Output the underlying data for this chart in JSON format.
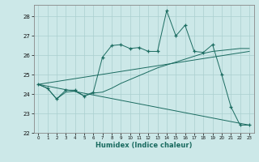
{
  "xlabel": "Humidex (Indice chaleur)",
  "xlim": [
    -0.5,
    23.5
  ],
  "ylim": [
    22,
    28.6
  ],
  "yticks": [
    22,
    23,
    24,
    25,
    26,
    27,
    28
  ],
  "xticks": [
    0,
    1,
    2,
    3,
    4,
    5,
    6,
    7,
    8,
    9,
    10,
    11,
    12,
    13,
    14,
    15,
    16,
    17,
    18,
    19,
    20,
    21,
    22,
    23
  ],
  "bg_color": "#cce8e8",
  "grid_color": "#aacfcf",
  "line_color": "#1a6b60",
  "line1_x": [
    0,
    1,
    2,
    3,
    4,
    5,
    6,
    7,
    8,
    9,
    10,
    11,
    12,
    13,
    14,
    15,
    16,
    17,
    18,
    19,
    20,
    21,
    22,
    23
  ],
  "line1_y": [
    24.5,
    24.3,
    23.75,
    24.2,
    24.2,
    23.9,
    24.1,
    25.9,
    26.5,
    26.55,
    26.35,
    26.4,
    26.2,
    26.2,
    28.3,
    27.0,
    27.55,
    26.2,
    26.15,
    26.55,
    25.0,
    23.35,
    22.4,
    22.4
  ],
  "line2_x": [
    0,
    1,
    2,
    3,
    4,
    5,
    6,
    7,
    8,
    9,
    10,
    11,
    12,
    13,
    14,
    15,
    16,
    17,
    18,
    19,
    20,
    21,
    22,
    23
  ],
  "line2_y": [
    24.5,
    24.3,
    23.75,
    24.1,
    24.15,
    23.9,
    24.05,
    24.1,
    24.3,
    24.55,
    24.75,
    24.95,
    25.15,
    25.35,
    25.5,
    25.65,
    25.8,
    25.95,
    26.1,
    26.2,
    26.25,
    26.3,
    26.35,
    26.35
  ],
  "line3_x": [
    0,
    23
  ],
  "line3_y": [
    24.5,
    22.4
  ],
  "line4_x": [
    0,
    23
  ],
  "line4_y": [
    24.5,
    26.2
  ]
}
